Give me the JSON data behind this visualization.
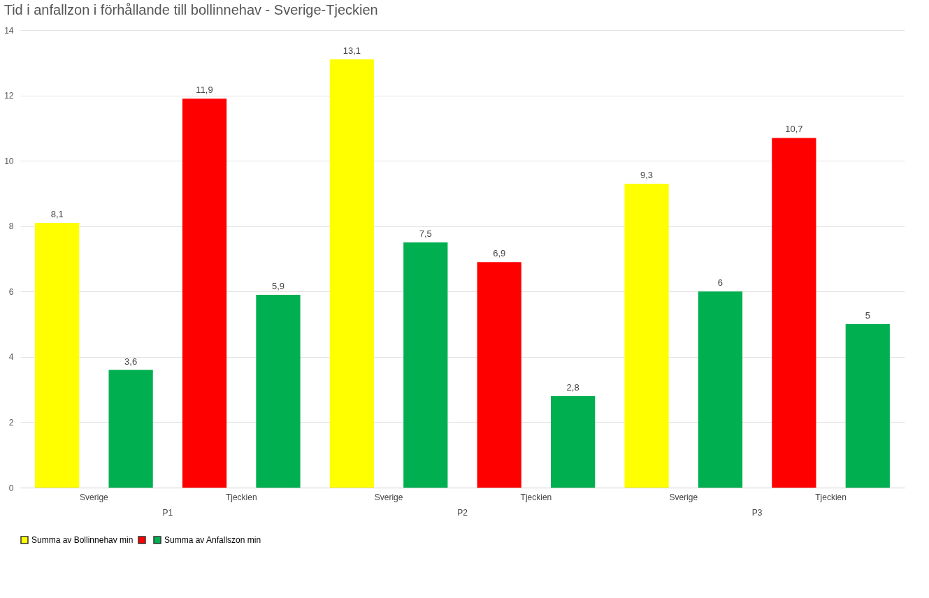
{
  "chart_data": {
    "type": "bar",
    "title": "Tid i anfallzon i förhållande till bollinnehav - Sverige-Tjeckien",
    "categories": [
      "Sverige",
      "Tjeckien",
      "Sverige",
      "Tjeckien",
      "Sverige",
      "Tjeckien"
    ],
    "annotations": [
      "P1",
      "P2",
      "P3"
    ],
    "series": [
      {
        "name": "Summa av Bollinnehav min",
        "color": "#ffff00",
        "colors": [
          "#ffff00",
          "#ff0000",
          "#ffff00",
          "#ff0000",
          "#ffff00",
          "#ff0000"
        ],
        "values": [
          8.1,
          11.9,
          13.1,
          6.9,
          9.3,
          10.7
        ],
        "value_labels": [
          "8,1",
          "11,9",
          "13,1",
          "6,9",
          "9,3",
          "10,7"
        ]
      },
      {
        "name": "Summa av Anfallszon min",
        "color": "#00b050",
        "values": [
          3.6,
          5.9,
          7.5,
          2.8,
          6,
          5
        ],
        "value_labels": [
          "3,6",
          "5,9",
          "7,5",
          "2,8",
          "6",
          "5"
        ]
      }
    ],
    "ylim": [
      0,
      14
    ],
    "yticks": [
      0,
      2,
      4,
      6,
      8,
      10,
      12,
      14
    ],
    "grid": "y",
    "legend": "bottom"
  }
}
